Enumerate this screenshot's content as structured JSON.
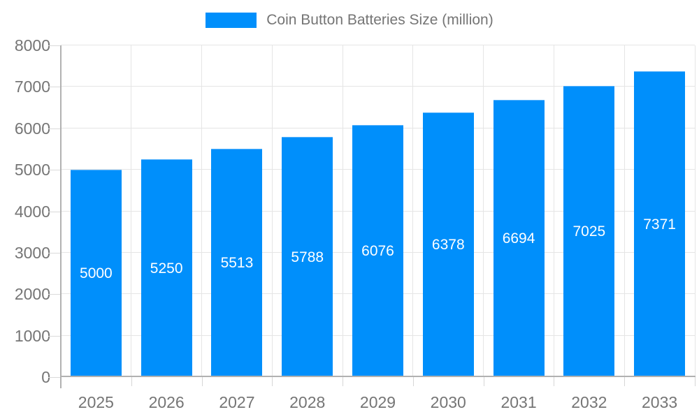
{
  "legend": {
    "label": "Coin Button Batteries Size (million)",
    "swatch_color": "#008FFB"
  },
  "chart_data": {
    "type": "bar",
    "title": "Coin Button Batteries Size (million)",
    "categories": [
      "2025",
      "2026",
      "2027",
      "2028",
      "2029",
      "2030",
      "2031",
      "2032",
      "2033"
    ],
    "values": [
      5000,
      5250,
      5513,
      5788,
      6076,
      6378,
      6694,
      7025,
      7371
    ],
    "xlabel": "",
    "ylabel": "",
    "ylim": [
      0,
      8000
    ],
    "ytick_step": 1000,
    "ytick_labels": [
      "0",
      "1000",
      "2000",
      "3000",
      "4000",
      "5000",
      "6000",
      "7000",
      "8000"
    ],
    "grid": true,
    "legend_position": "top",
    "bar_color": "#008FFB",
    "value_label_color": "#ffffff",
    "axis_text_color": "#757575",
    "gridline_color": "#e5e5e5",
    "axis_line_color": "#b1b1b1",
    "background_color": "#ffffff"
  }
}
